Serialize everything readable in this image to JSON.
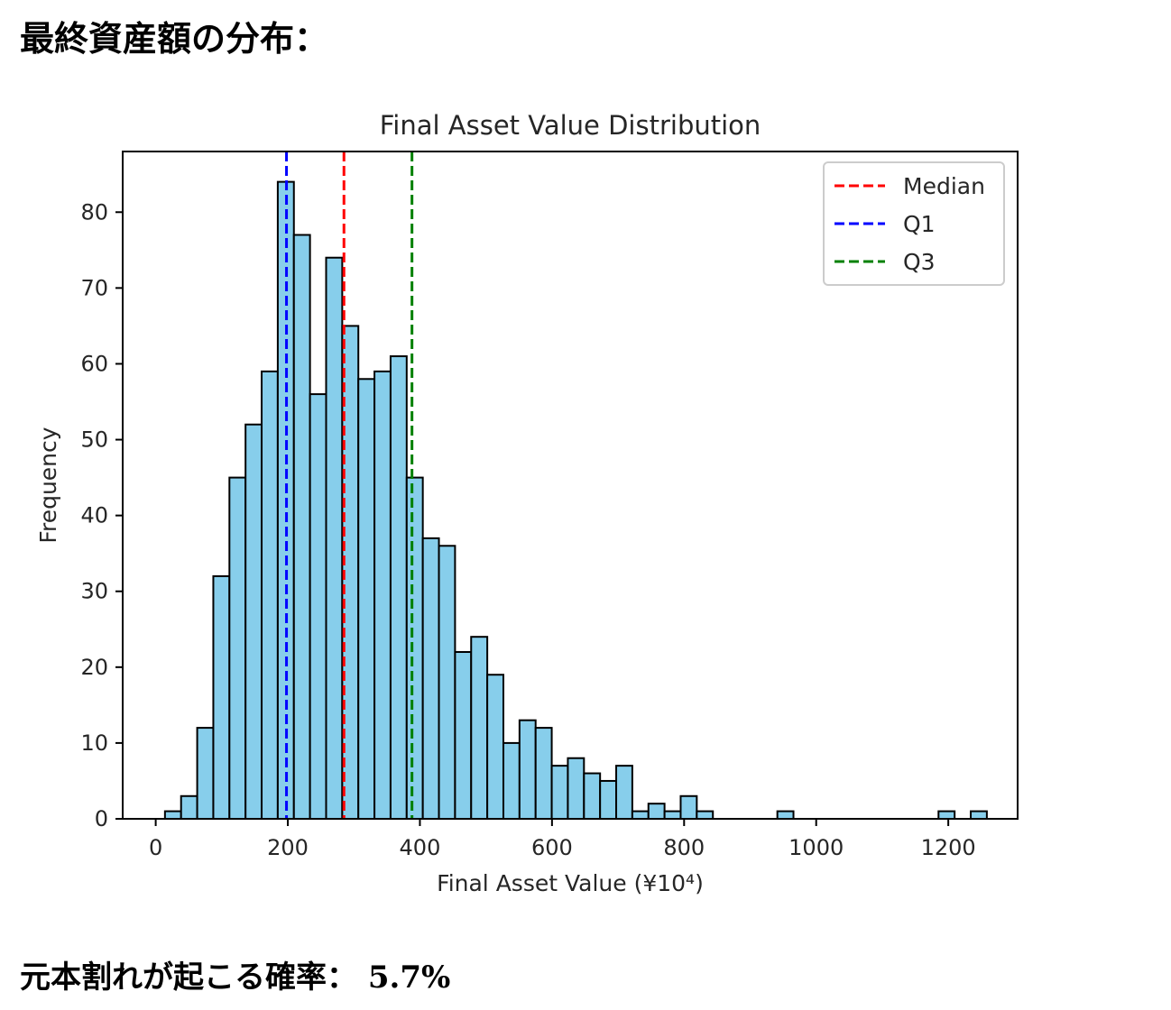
{
  "page": {
    "title": "最終資産額の分布：",
    "result_label": "元本割れが起こる確率：",
    "result_value": "5.7%"
  },
  "chart_data": {
    "type": "bar",
    "title": "Final Asset Value Distribution",
    "xlabel": "Final Asset Value (¥10⁴)",
    "ylabel": "Frequency",
    "xlim": [
      -50,
      1305
    ],
    "ylim": [
      0,
      88
    ],
    "xticks": [
      0,
      200,
      400,
      600,
      800,
      1000,
      1200
    ],
    "yticks": [
      0,
      10,
      20,
      30,
      40,
      50,
      60,
      70,
      80
    ],
    "bin_width": 24.4,
    "bin_start": 14,
    "values": [
      1,
      3,
      12,
      32,
      45,
      52,
      59,
      84,
      77,
      56,
      74,
      65,
      58,
      59,
      61,
      45,
      37,
      36,
      22,
      24,
      19,
      10,
      13,
      12,
      7,
      8,
      6,
      5,
      7,
      1,
      2,
      1,
      3,
      1,
      0,
      0,
      0,
      0,
      1,
      0,
      0,
      0,
      0,
      0,
      0,
      0,
      0,
      0,
      1,
      0,
      1
    ],
    "bar_color": "#87ceeb",
    "bar_edge_color": "#000000",
    "vlines": [
      {
        "name": "Median",
        "x": 285,
        "color": "#ff0000"
      },
      {
        "name": "Q1",
        "x": 198,
        "color": "#0000ff"
      },
      {
        "name": "Q3",
        "x": 388,
        "color": "#008000"
      }
    ],
    "legend_position": "top-right",
    "grid": false
  }
}
